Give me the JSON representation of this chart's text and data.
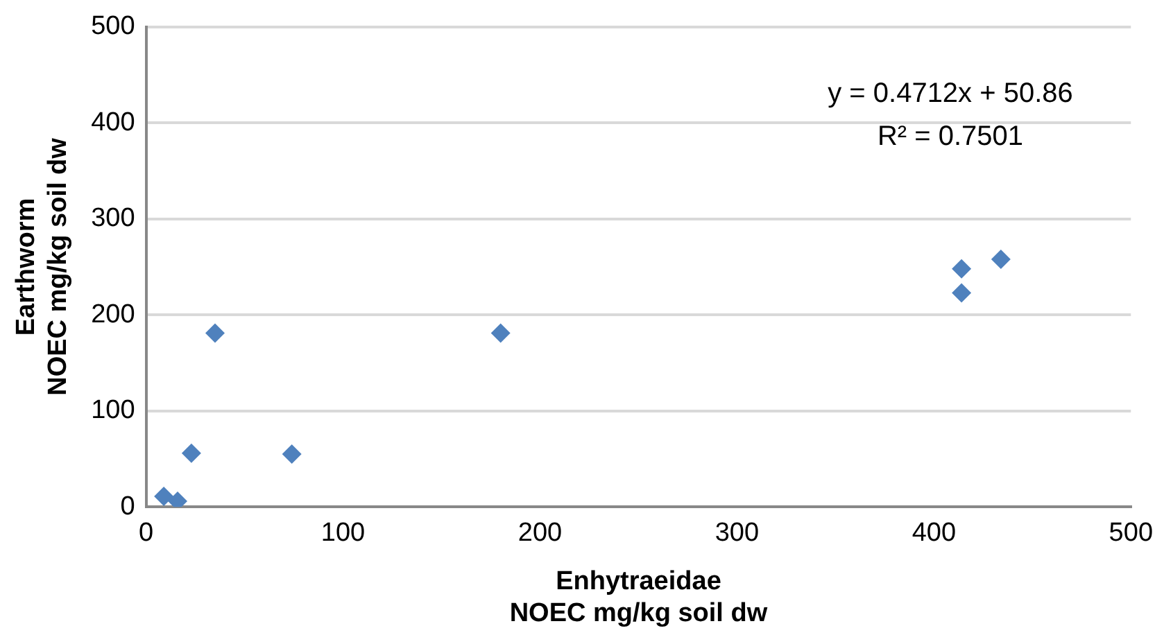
{
  "chart_data": {
    "type": "scatter",
    "xlabel": "Enhytraeidae\nNOEC mg/kg soil dw",
    "ylabel": "Earthworm\nNOEC mg/kg soil dw",
    "x": [
      9,
      16,
      23,
      35,
      74,
      180,
      414,
      414,
      434
    ],
    "series": [
      {
        "color": "#4f81bd",
        "values": [
          11,
          6,
          56,
          181,
          55,
          181,
          248,
          223,
          258
        ]
      }
    ],
    "xlim": [
      0,
      500
    ],
    "xticks": [
      0,
      100,
      200,
      300,
      400,
      500
    ],
    "ylim": [
      0,
      500
    ],
    "yticks": [
      0,
      100,
      200,
      300,
      400,
      500
    ],
    "grid": "y",
    "legend": false,
    "marker": "diamond",
    "annotations": [
      "y = 0.4712x + 50.86\nR² = 0.7501"
    ]
  }
}
